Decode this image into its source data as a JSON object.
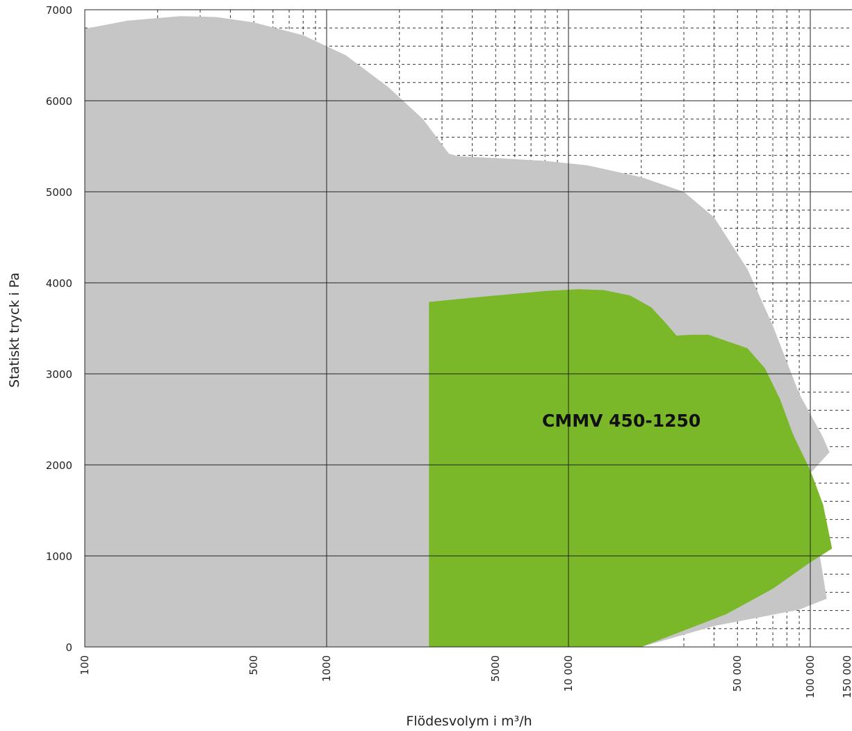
{
  "chart_data": {
    "type": "area",
    "title": "",
    "xlabel": "Flödesvolym i m³/h",
    "ylabel": "Statiskt tryck i Pa",
    "x_scale": "log",
    "xlim": [
      100,
      150000
    ],
    "ylim": [
      0,
      7000
    ],
    "grid": true,
    "x_tick_labels": [
      {
        "value": 100,
        "label": "100"
      },
      {
        "value": 500,
        "label": "500"
      },
      {
        "value": 1000,
        "label": "1000"
      },
      {
        "value": 5000,
        "label": "5000"
      },
      {
        "value": 10000,
        "label": "10 000"
      },
      {
        "value": 50000,
        "label": "50 000"
      },
      {
        "value": 100000,
        "label": "100 000"
      },
      {
        "value": 150000,
        "label": "150 000"
      }
    ],
    "y_tick_labels": [
      {
        "value": 0,
        "label": "0"
      },
      {
        "value": 1000,
        "label": "1000"
      },
      {
        "value": 2000,
        "label": "2000"
      },
      {
        "value": 3000,
        "label": "3000"
      },
      {
        "value": 4000,
        "label": "4000"
      },
      {
        "value": 5000,
        "label": "5000"
      },
      {
        "value": 6000,
        "label": "6000"
      },
      {
        "value": 7000,
        "label": "7000"
      }
    ],
    "series": [
      {
        "color": "#c6c6c6",
        "points": [
          [
            100,
            6790
          ],
          [
            150,
            6880
          ],
          [
            250,
            6930
          ],
          [
            350,
            6920
          ],
          [
            500,
            6860
          ],
          [
            800,
            6720
          ],
          [
            1200,
            6500
          ],
          [
            1800,
            6150
          ],
          [
            2500,
            5800
          ],
          [
            3200,
            5420
          ],
          [
            3500,
            5390
          ],
          [
            5000,
            5370
          ],
          [
            8000,
            5340
          ],
          [
            12000,
            5290
          ],
          [
            20000,
            5160
          ],
          [
            30000,
            5000
          ],
          [
            40000,
            4720
          ],
          [
            55000,
            4150
          ],
          [
            70000,
            3530
          ],
          [
            90000,
            2780
          ],
          [
            112000,
            2320
          ],
          [
            120000,
            2140
          ],
          [
            85000,
            1700
          ],
          [
            105000,
            1300
          ],
          [
            117000,
            530
          ],
          [
            90000,
            410
          ],
          [
            60000,
            320
          ],
          [
            40000,
            230
          ],
          [
            20000,
            0
          ],
          [
            100,
            0
          ]
        ]
      },
      {
        "name": "CMMV 450-1250",
        "color": "#7ab829",
        "points": [
          [
            2650,
            0
          ],
          [
            2650,
            3790
          ],
          [
            5000,
            3860
          ],
          [
            8000,
            3910
          ],
          [
            11000,
            3930
          ],
          [
            14000,
            3920
          ],
          [
            18000,
            3860
          ],
          [
            22000,
            3730
          ],
          [
            25000,
            3570
          ],
          [
            28000,
            3420
          ],
          [
            32000,
            3430
          ],
          [
            38000,
            3430
          ],
          [
            45000,
            3360
          ],
          [
            50000,
            3320
          ],
          [
            55000,
            3280
          ],
          [
            65000,
            3060
          ],
          [
            75000,
            2720
          ],
          [
            85000,
            2330
          ],
          [
            100000,
            1940
          ],
          [
            113000,
            1560
          ],
          [
            123000,
            1080
          ],
          [
            100000,
            930
          ],
          [
            70000,
            640
          ],
          [
            45000,
            360
          ],
          [
            20000,
            0
          ]
        ]
      }
    ],
    "annotation": "CMMV 450-1250"
  }
}
